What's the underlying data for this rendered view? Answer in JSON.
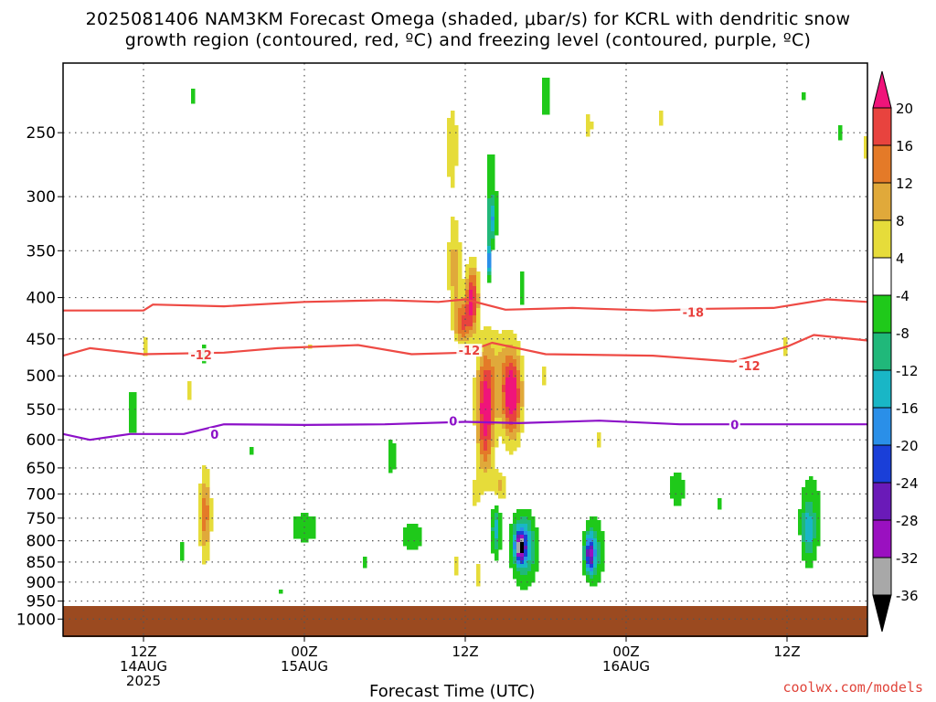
{
  "title_line1": "2025081406 NAM3KM Forecast Omega (shaded, μbar/s) for KCRL with dendritic snow",
  "title_line2": "growth region (contoured, red, ºC) and freezing level (contoured, purple, ºC)",
  "credit": "coolwx.com/models",
  "chart_data": {
    "type": "heatmap",
    "xlabel": "Forecast Time (UTC)",
    "ylabel": "",
    "y_scale": "log-pressure",
    "ylim_hPa": [
      1050,
      205
    ],
    "yticks": [
      250,
      300,
      350,
      400,
      450,
      500,
      550,
      600,
      650,
      700,
      750,
      800,
      850,
      900,
      950,
      1000
    ],
    "xlim_hours": [
      0,
      60
    ],
    "xticks": [
      {
        "hour": 6,
        "lines": [
          "12Z",
          "14AUG",
          "2025"
        ]
      },
      {
        "hour": 18,
        "lines": [
          "00Z",
          "15AUG"
        ]
      },
      {
        "hour": 30,
        "lines": [
          "12Z",
          ""
        ]
      },
      {
        "hour": 42,
        "lines": [
          "00Z",
          "16AUG"
        ]
      },
      {
        "hour": 54,
        "lines": [
          "12Z",
          ""
        ]
      }
    ],
    "colorbar": {
      "units": "μbar/s",
      "bounds": [
        20,
        16,
        12,
        8,
        4,
        -4,
        -8,
        -12,
        -16,
        -20,
        -24,
        -28,
        -32,
        -36
      ],
      "colors": [
        "#f0147a",
        "#e8433e",
        "#e47a28",
        "#e0a93a",
        "#e6dc3a",
        "#ffffff",
        "#1fc91a",
        "#20b87a",
        "#19b6c6",
        "#2a8fe8",
        "#1a3fd8",
        "#6a1ab8",
        "#9a10c0",
        "#a8a8a8",
        "#000000"
      ]
    },
    "omega_features": [
      {
        "t": 9.6,
        "p": 225,
        "rt": 0.35,
        "rp": 0.05,
        "v": -5
      },
      {
        "t": 5.2,
        "p": 555,
        "rt": 0.5,
        "rp": 0.1,
        "v": -6
      },
      {
        "t": 6.2,
        "p": 460,
        "rt": 0.3,
        "rp": 0.06,
        "v": 5
      },
      {
        "t": 9.3,
        "p": 520,
        "rt": 0.3,
        "rp": 0.08,
        "v": 5
      },
      {
        "t": 10.5,
        "p": 470,
        "rt": 0.2,
        "rp": 0.05,
        "v": -5
      },
      {
        "t": 10.6,
        "p": 750,
        "rt": 0.55,
        "rp": 0.18,
        "v": 5
      },
      {
        "t": 10.6,
        "p": 740,
        "rt": 0.35,
        "rp": 0.1,
        "v": 10
      },
      {
        "t": 8.9,
        "p": 820,
        "rt": 0.2,
        "rp": 0.06,
        "v": -5
      },
      {
        "t": 14.0,
        "p": 620,
        "rt": 0.2,
        "rp": 0.02,
        "v": -5
      },
      {
        "t": 18.5,
        "p": 460,
        "rt": 0.2,
        "rp": 0.04,
        "v": 5
      },
      {
        "t": 18.0,
        "p": 770,
        "rt": 1.5,
        "rp": 0.06,
        "v": -6
      },
      {
        "t": 16.2,
        "p": 925,
        "rt": 0.3,
        "rp": 0.02,
        "v": -5
      },
      {
        "t": 22.6,
        "p": 850,
        "rt": 0.3,
        "rp": 0.04,
        "v": -5
      },
      {
        "t": 24.5,
        "p": 630,
        "rt": 0.6,
        "rp": 0.1,
        "v": -5
      },
      {
        "t": 26.0,
        "p": 790,
        "rt": 1.2,
        "rp": 0.06,
        "v": -6
      },
      {
        "t": 29.0,
        "p": 260,
        "rt": 0.8,
        "rp": 0.22,
        "v": 5
      },
      {
        "t": 29.2,
        "p": 370,
        "rt": 0.5,
        "rp": 0.12,
        "v": 10
      },
      {
        "t": 29.8,
        "p": 430,
        "rt": 0.6,
        "rp": 0.06,
        "v": 16
      },
      {
        "t": 30.5,
        "p": 400,
        "rt": 0.45,
        "rp": 0.09,
        "v": 22
      },
      {
        "t": 31.5,
        "p": 560,
        "rt": 0.6,
        "rp": 0.16,
        "v": 22
      },
      {
        "t": 33.5,
        "p": 530,
        "rt": 0.7,
        "rp": 0.12,
        "v": 22
      },
      {
        "t": 32.4,
        "p": 500,
        "rt": 1.4,
        "rp": 0.14,
        "v": 8
      },
      {
        "t": 32.5,
        "p": 690,
        "rt": 0.5,
        "rp": 0.05,
        "v": 10
      },
      {
        "t": 30.7,
        "p": 700,
        "rt": 0.45,
        "rp": 0.06,
        "v": 5
      },
      {
        "t": 31.0,
        "p": 880,
        "rt": 0.35,
        "rp": 0.07,
        "v": 5
      },
      {
        "t": 29.3,
        "p": 860,
        "rt": 0.2,
        "rp": 0.05,
        "v": 5
      },
      {
        "t": 31.9,
        "p": 285,
        "rt": 0.55,
        "rp": 0.12,
        "v": -6
      },
      {
        "t": 32.0,
        "p": 320,
        "rt": 0.35,
        "rp": 0.06,
        "v": -14
      },
      {
        "t": 31.8,
        "p": 360,
        "rt": 0.18,
        "rp": 0.05,
        "v": -18
      },
      {
        "t": 34.2,
        "p": 390,
        "rt": 0.25,
        "rp": 0.08,
        "v": -6
      },
      {
        "t": 35.8,
        "p": 500,
        "rt": 0.4,
        "rp": 0.05,
        "v": 5
      },
      {
        "t": 32.3,
        "p": 770,
        "rt": 0.35,
        "rp": 0.08,
        "v": -14
      },
      {
        "t": 34.3,
        "p": 800,
        "rt": 0.9,
        "rp": 0.08,
        "v": -14
      },
      {
        "t": 34.1,
        "p": 815,
        "rt": 0.35,
        "rp": 0.04,
        "v": -24
      },
      {
        "t": 34.5,
        "p": 850,
        "rt": 1.0,
        "rp": 0.1,
        "v": -6
      },
      {
        "t": 36.0,
        "p": 225,
        "rt": 0.8,
        "rp": 0.12,
        "v": -5
      },
      {
        "t": 39.2,
        "p": 245,
        "rt": 0.5,
        "rp": 0.06,
        "v": 5
      },
      {
        "t": 40.0,
        "p": 600,
        "rt": 0.4,
        "rp": 0.05,
        "v": 5
      },
      {
        "t": 39.6,
        "p": 825,
        "rt": 0.8,
        "rp": 0.1,
        "v": -10
      },
      {
        "t": 39.3,
        "p": 830,
        "rt": 0.35,
        "rp": 0.05,
        "v": -22
      },
      {
        "t": 45.8,
        "p": 690,
        "rt": 1.1,
        "rp": 0.1,
        "v": -5
      },
      {
        "t": 49.0,
        "p": 720,
        "rt": 0.4,
        "rp": 0.04,
        "v": -5
      },
      {
        "t": 44.5,
        "p": 240,
        "rt": 0.3,
        "rp": 0.06,
        "v": 5
      },
      {
        "t": 53.8,
        "p": 460,
        "rt": 0.3,
        "rp": 0.06,
        "v": 5
      },
      {
        "t": 55.8,
        "p": 740,
        "rt": 1.1,
        "rp": 0.15,
        "v": -6
      },
      {
        "t": 55.6,
        "p": 780,
        "rt": 0.45,
        "rp": 0.08,
        "v": -10
      },
      {
        "t": 58.0,
        "p": 250,
        "rt": 0.25,
        "rp": 0.05,
        "v": -5
      },
      {
        "t": 59.8,
        "p": 260,
        "rt": 0.3,
        "rp": 0.08,
        "v": 5
      },
      {
        "t": 55.2,
        "p": 225,
        "rt": 0.2,
        "rp": 0.03,
        "v": -5
      }
    ],
    "isotherm_neg18": [
      [
        0,
        415
      ],
      [
        6,
        415
      ],
      [
        6.7,
        408
      ],
      [
        12,
        410
      ],
      [
        18,
        405
      ],
      [
        24,
        403
      ],
      [
        28,
        405
      ],
      [
        30,
        402
      ],
      [
        33,
        414
      ],
      [
        38,
        412
      ],
      [
        44,
        415
      ],
      [
        48,
        413
      ],
      [
        53,
        412
      ],
      [
        57,
        402
      ],
      [
        60,
        405
      ]
    ],
    "isotherm_neg12": [
      [
        0,
        472
      ],
      [
        2,
        462
      ],
      [
        6,
        470
      ],
      [
        12,
        468
      ],
      [
        16,
        462
      ],
      [
        22,
        458
      ],
      [
        26,
        470
      ],
      [
        30,
        468
      ],
      [
        32,
        455
      ],
      [
        36,
        470
      ],
      [
        44,
        472
      ],
      [
        50,
        480
      ],
      [
        54,
        460
      ],
      [
        56,
        445
      ],
      [
        60,
        452
      ]
    ],
    "isotherm_0": [
      [
        0,
        590
      ],
      [
        2,
        600
      ],
      [
        5,
        590
      ],
      [
        9,
        590
      ],
      [
        12,
        574
      ],
      [
        18,
        575
      ],
      [
        24,
        574
      ],
      [
        30,
        570
      ],
      [
        34,
        572
      ],
      [
        40,
        568
      ],
      [
        46,
        574
      ],
      [
        52,
        574
      ],
      [
        60,
        574
      ]
    ],
    "contour_labels": [
      {
        "text": "-18",
        "t": 47.0,
        "p": 418
      },
      {
        "text": "-12",
        "t": 10.3,
        "p": 472
      },
      {
        "text": "-12",
        "t": 30.3,
        "p": 466
      },
      {
        "text": "-12",
        "t": 51.2,
        "p": 487
      },
      {
        "text": "0",
        "t": 11.3,
        "p": 592
      },
      {
        "text": "0",
        "t": 29.1,
        "p": 570
      },
      {
        "text": "0",
        "t": 50.1,
        "p": 576
      }
    ]
  }
}
